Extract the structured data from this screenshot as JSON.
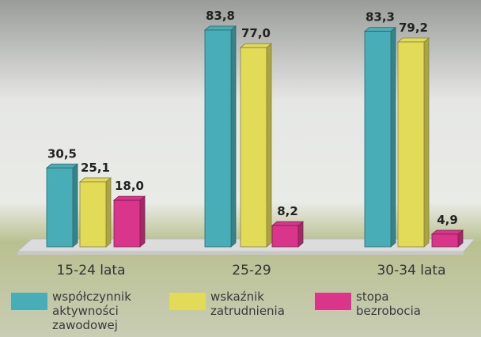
{
  "chart_data": {
    "type": "bar",
    "categories": [
      "15-24 lata",
      "25-29",
      "30-34 lata"
    ],
    "series": [
      {
        "name": "współczynnik aktywności zawodowej",
        "color": "#48adb6",
        "values": [
          30.5,
          83.8,
          83.3
        ],
        "value_labels": [
          "30,5",
          "83,8",
          "83,3"
        ]
      },
      {
        "name": "wskaźnik zatrudnienia",
        "color": "#e2db58",
        "values": [
          25.1,
          77.0,
          79.2
        ],
        "value_labels": [
          "25,1",
          "77,0",
          "79,2"
        ]
      },
      {
        "name": "stopa bezrobocia",
        "color": "#d8358b",
        "values": [
          18.0,
          8.2,
          4.9
        ],
        "value_labels": [
          "18,0",
          "8,2",
          "4,9"
        ]
      }
    ]
  }
}
